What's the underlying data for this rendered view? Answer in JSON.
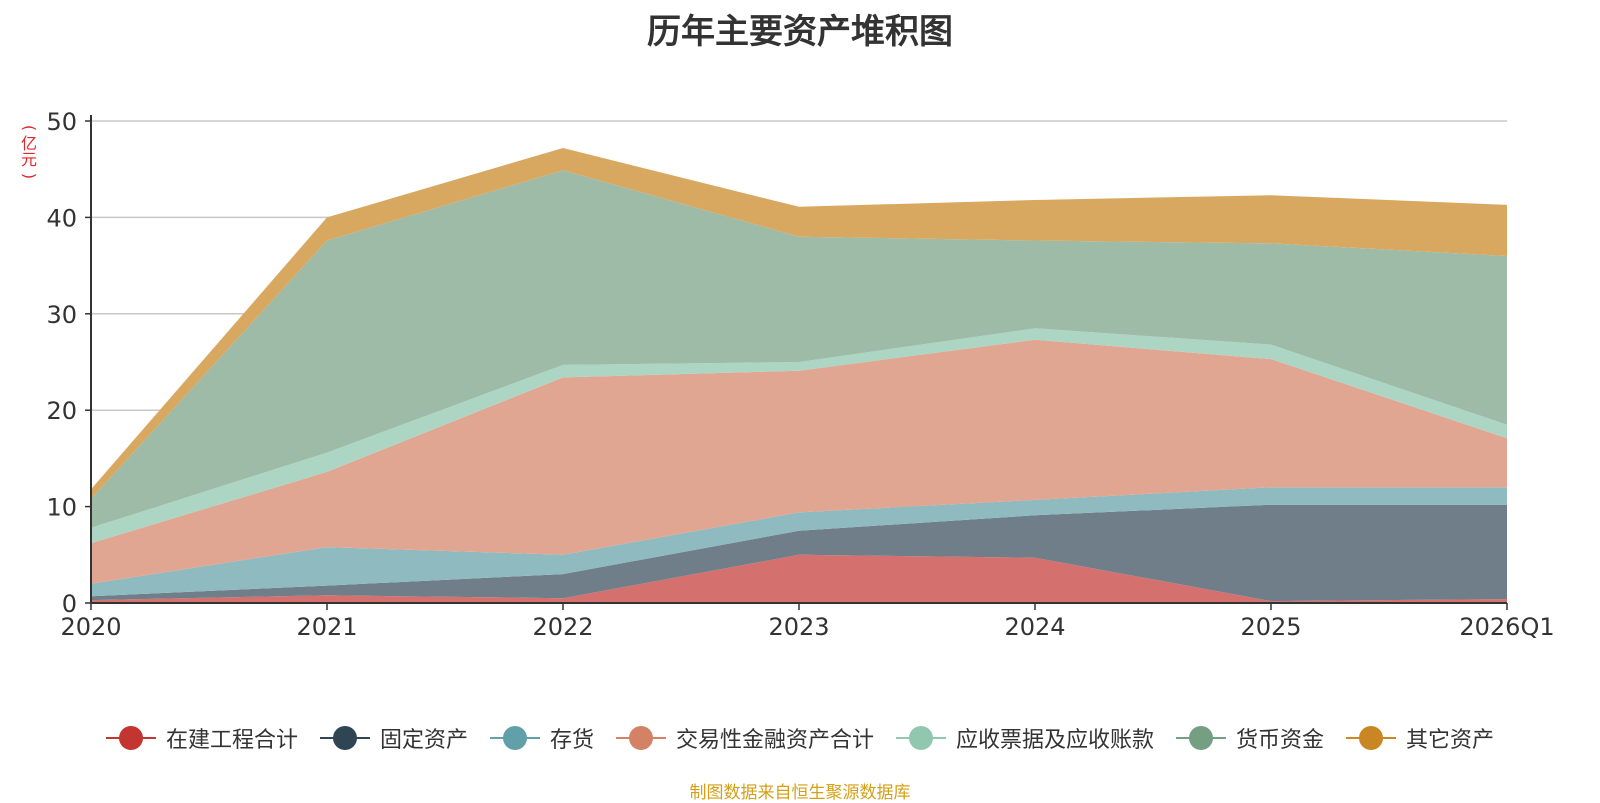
{
  "chart_data": {
    "type": "area",
    "stacked": true,
    "title": "历年主要资产堆积图",
    "unit_label": "(亿元)",
    "categories": [
      "2020",
      "2021",
      "2022",
      "2023",
      "2024",
      "2025",
      "2026Q1"
    ],
    "ylim": [
      0,
      50
    ],
    "yticks": [
      0,
      10,
      20,
      30,
      40,
      50
    ],
    "grid": true,
    "legend_position": "bottom",
    "series": [
      {
        "name": "在建工程合计",
        "color": "#c23531",
        "fill": "#d4716e",
        "values": [
          0.3,
          0.8,
          0.5,
          5.0,
          4.7,
          0.2,
          0.4
        ]
      },
      {
        "name": "固定资产",
        "color": "#2f4554",
        "fill": "#6f7e89",
        "values": [
          0.4,
          1.0,
          2.5,
          2.5,
          4.4,
          10.0,
          9.8
        ]
      },
      {
        "name": "存货",
        "color": "#61a0a8",
        "fill": "#8fbac0",
        "values": [
          1.3,
          4.0,
          2.0,
          1.9,
          1.6,
          1.8,
          1.8
        ]
      },
      {
        "name": "交易性金融资产合计",
        "color": "#d48265",
        "fill": "#e0a692",
        "values": [
          4.2,
          7.8,
          18.4,
          14.7,
          16.6,
          13.3,
          5.1
        ]
      },
      {
        "name": "应收票据及应收账款",
        "color": "#91c7ae",
        "fill": "#acd6c3",
        "values": [
          1.6,
          2.0,
          1.3,
          0.9,
          1.2,
          1.5,
          1.4
        ]
      },
      {
        "name": "货币资金",
        "color": "#749f83",
        "fill": "#9ebba7",
        "values": [
          3.0,
          22.0,
          20.2,
          13.0,
          9.1,
          10.5,
          17.5
        ]
      },
      {
        "name": "其它资产",
        "color": "#ca8622",
        "fill": "#d9a860",
        "values": [
          1.0,
          2.4,
          2.3,
          3.1,
          4.2,
          5.0,
          5.3
        ]
      }
    ]
  },
  "footer": {
    "source": "制图数据来自恒生聚源数据库"
  }
}
